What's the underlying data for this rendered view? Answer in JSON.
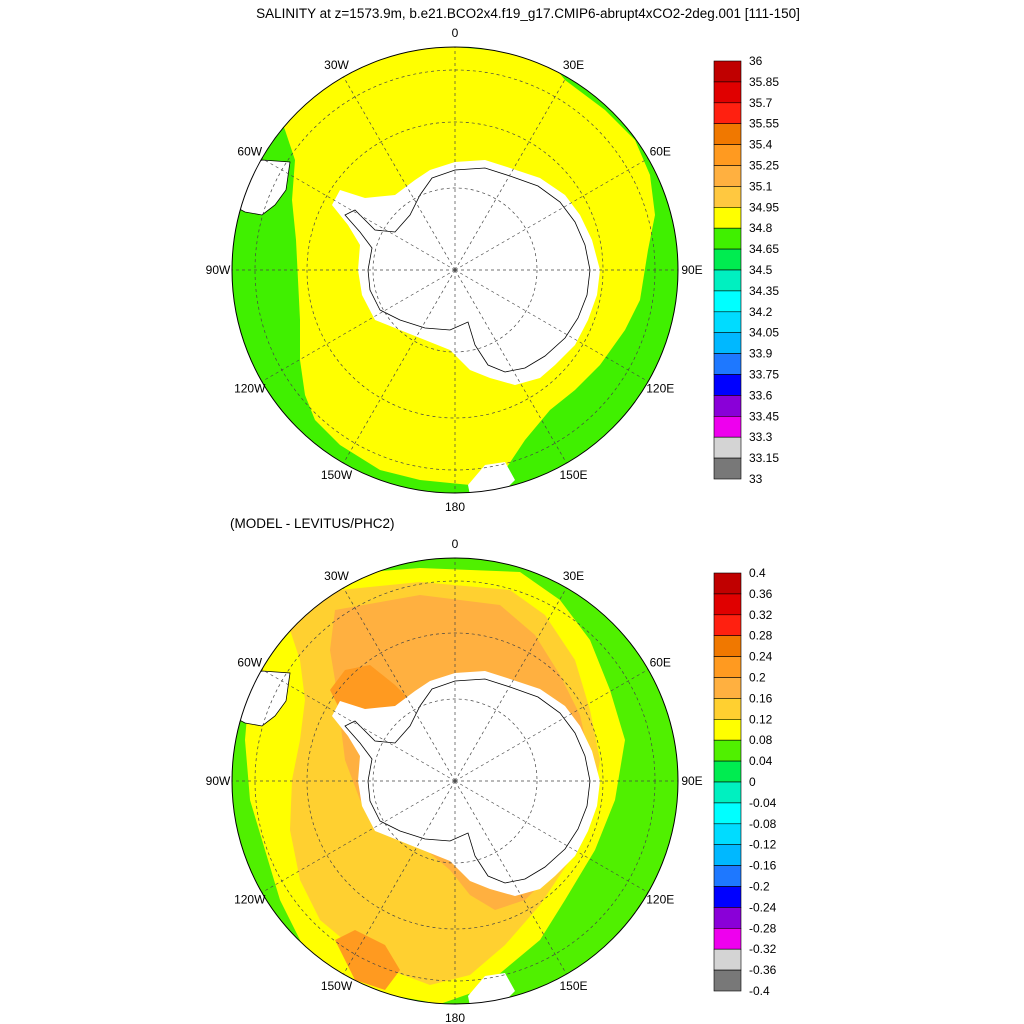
{
  "figure": {
    "title": "SALINITY at z=1573.9m, b.e21.BCO2x4.f19_g17.CMIP6-abrupt4xCO2-2deg.001 [111-150]",
    "subtitle": "(MODEL - LEVITUS/PHC2)"
  },
  "longitude_labels": [
    "0",
    "30E",
    "60E",
    "90E",
    "120E",
    "150E",
    "180",
    "150W",
    "120W",
    "90W",
    "60W",
    "30W"
  ],
  "panels": [
    {
      "id": "salinity",
      "colorbar": {
        "labels": [
          "36",
          "35.85",
          "35.7",
          "35.55",
          "35.4",
          "35.25",
          "35.1",
          "34.95",
          "34.8",
          "34.65",
          "34.5",
          "34.35",
          "34.2",
          "34.05",
          "33.9",
          "33.75",
          "33.6",
          "33.45",
          "33.3",
          "33.15",
          "33"
        ],
        "colors": [
          "#c00000",
          "#e00000",
          "#ff2010",
          "#f07800",
          "#ff9a20",
          "#ffb040",
          "#ffc840",
          "#ffff00",
          "#40f000",
          "#00ec50",
          "#00f0c0",
          "#00ffff",
          "#00dcff",
          "#00b8ff",
          "#1e78ff",
          "#0000ff",
          "#8a00d8",
          "#ee00ee",
          "#d4d4d4",
          "#787878"
        ]
      }
    },
    {
      "id": "difference",
      "colorbar": {
        "labels": [
          "0.4",
          "0.36",
          "0.32",
          "0.28",
          "0.24",
          "0.2",
          "0.16",
          "0.12",
          "0.08",
          "0.04",
          "0",
          "-0.04",
          "-0.08",
          "-0.12",
          "-0.16",
          "-0.2",
          "-0.24",
          "-0.28",
          "-0.32",
          "-0.36",
          "-0.4"
        ],
        "colors": [
          "#c00000",
          "#e00000",
          "#ff2010",
          "#f07800",
          "#ff9a20",
          "#ffb040",
          "#ffd030",
          "#ffff00",
          "#50f000",
          "#00ec50",
          "#00f0c0",
          "#00ffff",
          "#00dcff",
          "#00b8ff",
          "#1e78ff",
          "#0000ff",
          "#8a00d8",
          "#ee00ee",
          "#d4d4d4",
          "#787878"
        ]
      }
    }
  ]
}
